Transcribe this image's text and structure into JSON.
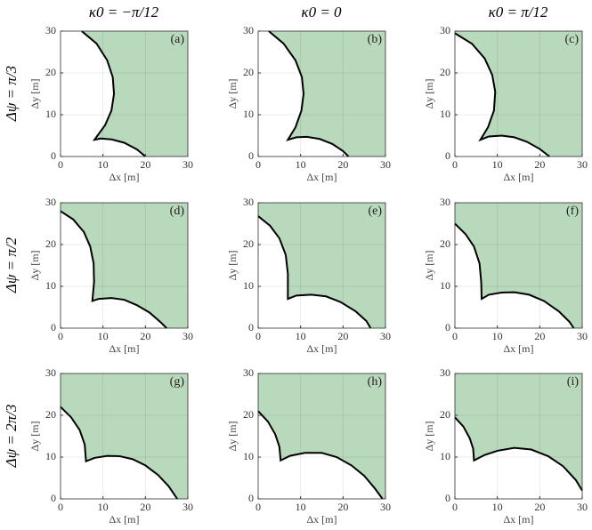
{
  "column_titles": [
    "κ0 = −π/12",
    "κ0 = 0",
    "κ0 = π/12"
  ],
  "row_titles": [
    "Δψ = π/3",
    "Δψ = π/2",
    "Δψ = 2π/3"
  ],
  "chart_data": [
    {
      "type": "area",
      "panel_label": "(a)",
      "x_label": "Δx [m]",
      "y_label": "Δy [m]",
      "xlim": [
        0,
        30
      ],
      "ylim": [
        0,
        30
      ],
      "xticks": [
        0,
        10,
        20,
        30
      ],
      "yticks": [
        0,
        10,
        20,
        30
      ],
      "grid": true,
      "fill_color": "#b9d9bc",
      "line_color": "#000000",
      "x": [
        5,
        8.5,
        11,
        12.3,
        12.6,
        12,
        10.5,
        8,
        9.5,
        12,
        15,
        18,
        20
      ],
      "y": [
        30,
        27,
        23,
        19,
        15,
        11,
        7.5,
        4,
        4.3,
        4.1,
        3.3,
        1.7,
        0
      ]
    },
    {
      "type": "area",
      "panel_label": "(b)",
      "x_label": "Δx [m]",
      "y_label": "Δy [m]",
      "xlim": [
        0,
        30
      ],
      "ylim": [
        0,
        30
      ],
      "xticks": [
        0,
        10,
        20,
        30
      ],
      "yticks": [
        0,
        10,
        20,
        30
      ],
      "grid": true,
      "fill_color": "#b9d9bc",
      "line_color": "#000000",
      "x": [
        2.5,
        6,
        8.8,
        10.3,
        10.7,
        10.2,
        8.8,
        7,
        9,
        11.5,
        14.5,
        17.5,
        20,
        21.3
      ],
      "y": [
        30,
        27,
        23,
        19,
        15,
        11,
        7,
        4,
        4.6,
        4.7,
        4.2,
        3,
        1.3,
        0
      ]
    },
    {
      "type": "area",
      "panel_label": "(c)",
      "x_label": "Δx [m]",
      "y_label": "Δy [m]",
      "xlim": [
        0,
        30
      ],
      "ylim": [
        0,
        30
      ],
      "xticks": [
        0,
        10,
        20,
        30
      ],
      "yticks": [
        0,
        10,
        20,
        30
      ],
      "grid": true,
      "fill_color": "#b9d9bc",
      "line_color": "#000000",
      "x": [
        0,
        4,
        7,
        8.8,
        9.5,
        9.2,
        7.8,
        6,
        8,
        11,
        14,
        17,
        20,
        22.3
      ],
      "y": [
        29.5,
        27,
        23.5,
        19.5,
        15.5,
        11,
        7,
        4,
        4.8,
        5,
        4.6,
        3.5,
        1.8,
        0
      ]
    },
    {
      "type": "area",
      "panel_label": "(d)",
      "x_label": "Δx [m]",
      "y_label": "Δy [m]",
      "xlim": [
        0,
        30
      ],
      "ylim": [
        0,
        30
      ],
      "xticks": [
        0,
        10,
        20,
        30
      ],
      "yticks": [
        0,
        10,
        20,
        30
      ],
      "grid": true,
      "fill_color": "#b9d9bc",
      "line_color": "#000000",
      "x": [
        0,
        3,
        5.5,
        7,
        7.8,
        7.9,
        7.5,
        9,
        12,
        15,
        18,
        21,
        23.5,
        25
      ],
      "y": [
        28,
        26,
        23,
        19.5,
        15.5,
        11,
        6.5,
        7,
        7.2,
        6.8,
        5.5,
        3.7,
        1.5,
        0
      ]
    },
    {
      "type": "area",
      "panel_label": "(e)",
      "x_label": "Δx [m]",
      "y_label": "Δy [m]",
      "xlim": [
        0,
        30
      ],
      "ylim": [
        0,
        30
      ],
      "xticks": [
        0,
        10,
        20,
        30
      ],
      "yticks": [
        0,
        10,
        20,
        30
      ],
      "grid": true,
      "fill_color": "#b9d9bc",
      "line_color": "#000000",
      "x": [
        0,
        2.8,
        5,
        6.5,
        7,
        7,
        9,
        12.5,
        16,
        19.5,
        23,
        25.5,
        26.5
      ],
      "y": [
        26.8,
        24.5,
        21.5,
        17.5,
        13,
        7,
        7.8,
        8,
        7.6,
        6.2,
        4,
        1.7,
        0
      ]
    },
    {
      "type": "area",
      "panel_label": "(f)",
      "x_label": "Δx [m]",
      "y_label": "Δy [m]",
      "xlim": [
        0,
        30
      ],
      "ylim": [
        0,
        30
      ],
      "xticks": [
        0,
        10,
        20,
        30
      ],
      "yticks": [
        0,
        10,
        20,
        30
      ],
      "grid": true,
      "fill_color": "#b9d9bc",
      "line_color": "#000000",
      "x": [
        0,
        2.5,
        4.5,
        5.8,
        6.2,
        6.3,
        8,
        11,
        14,
        17.5,
        21,
        24.5,
        27,
        28
      ],
      "y": [
        25,
        22.5,
        19.5,
        15.5,
        11,
        7,
        8,
        8.5,
        8.6,
        8,
        6.5,
        4,
        1.5,
        0
      ]
    },
    {
      "type": "area",
      "panel_label": "(g)",
      "x_label": "Δx [m]",
      "y_label": "Δy [m]",
      "xlim": [
        0,
        30
      ],
      "ylim": [
        0,
        30
      ],
      "xticks": [
        0,
        10,
        20,
        30
      ],
      "yticks": [
        0,
        10,
        20,
        30
      ],
      "grid": true,
      "fill_color": "#b9d9bc",
      "line_color": "#000000",
      "x": [
        0,
        2.5,
        4.5,
        5.7,
        6,
        8,
        11,
        14,
        17,
        20,
        23,
        25.5,
        27.5
      ],
      "y": [
        22,
        19.5,
        16.5,
        13,
        9,
        9.8,
        10.3,
        10.2,
        9.5,
        8,
        5.7,
        3,
        0
      ]
    },
    {
      "type": "area",
      "panel_label": "(h)",
      "x_label": "Δx [m]",
      "y_label": "Δy [m]",
      "xlim": [
        0,
        30
      ],
      "ylim": [
        0,
        30
      ],
      "xticks": [
        0,
        10,
        20,
        30
      ],
      "yticks": [
        0,
        10,
        20,
        30
      ],
      "grid": true,
      "fill_color": "#b9d9bc",
      "line_color": "#000000",
      "x": [
        0,
        2.3,
        4,
        5,
        5.3,
        7.5,
        11,
        15,
        18.5,
        22,
        25,
        27.5,
        29.3
      ],
      "y": [
        21,
        18.5,
        15.5,
        12.5,
        9.2,
        10.3,
        11,
        11,
        10,
        8,
        5.5,
        2.5,
        0
      ]
    },
    {
      "type": "area",
      "panel_label": "(i)",
      "x_label": "Δx [m]",
      "y_label": "Δy [m]",
      "xlim": [
        0,
        30
      ],
      "ylim": [
        0,
        30
      ],
      "xticks": [
        0,
        10,
        20,
        30
      ],
      "yticks": [
        0,
        10,
        20,
        30
      ],
      "grid": true,
      "fill_color": "#b9d9bc",
      "line_color": "#000000",
      "x": [
        0,
        2,
        3.5,
        4.3,
        4.5,
        7,
        10,
        14,
        18,
        22,
        25.5,
        28.5,
        30
      ],
      "y": [
        19.5,
        17.3,
        14.5,
        12,
        9.2,
        10.5,
        11.5,
        12.2,
        11.8,
        10.2,
        7.8,
        4.5,
        2
      ]
    }
  ]
}
